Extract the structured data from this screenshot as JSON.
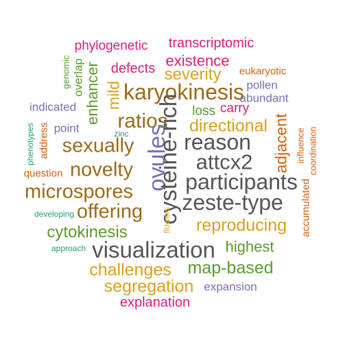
{
  "words": [
    {
      "text": "phylogenetic"
    },
    {
      "text": "transcriptomic"
    },
    {
      "text": "existence"
    },
    {
      "text": "genomic"
    },
    {
      "text": "overlap"
    },
    {
      "text": "enhancer"
    },
    {
      "text": "mild"
    },
    {
      "text": "defects"
    },
    {
      "text": "severity"
    },
    {
      "text": "eukaryotic"
    },
    {
      "text": "pollen"
    },
    {
      "text": "karyokinesis"
    },
    {
      "text": "abundant"
    },
    {
      "text": "indicated"
    },
    {
      "text": "loss"
    },
    {
      "text": "carry"
    },
    {
      "text": "ratios"
    },
    {
      "text": "directional"
    },
    {
      "text": "adjacent"
    },
    {
      "text": "phenotypes"
    },
    {
      "text": "address"
    },
    {
      "text": "point"
    },
    {
      "text": "zinc"
    },
    {
      "text": "influence"
    },
    {
      "text": "coordination"
    },
    {
      "text": "sexually"
    },
    {
      "text": "ovules"
    },
    {
      "text": "cysteine-rich"
    },
    {
      "text": "reason"
    },
    {
      "text": "attcx2"
    },
    {
      "text": "question"
    },
    {
      "text": "novelty"
    },
    {
      "text": "participants"
    },
    {
      "text": "accumulated"
    },
    {
      "text": "microspores"
    },
    {
      "text": "zeste-type"
    },
    {
      "text": "offering"
    },
    {
      "text": "developing"
    },
    {
      "text": "flowers"
    },
    {
      "text": "reproducing"
    },
    {
      "text": "cytokinesis"
    },
    {
      "text": "approach"
    },
    {
      "text": "visualization"
    },
    {
      "text": "highest"
    },
    {
      "text": "challenges"
    },
    {
      "text": "map-based"
    },
    {
      "text": "segregation"
    },
    {
      "text": "expansion"
    },
    {
      "text": "explanation"
    }
  ],
  "colors": {
    "gray": "#555555",
    "brown": "#9a6b19",
    "gold": "#dba01a",
    "green": "#5b9a2a",
    "pink": "#d71d7a",
    "purple": "#7570b3",
    "orange": "#d35f0a",
    "teal": "#1b9e77"
  }
}
